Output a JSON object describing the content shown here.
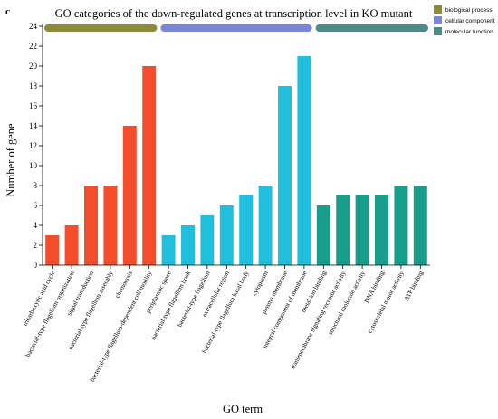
{
  "panel_letter": "c",
  "chart_data": {
    "type": "bar",
    "title": "GO categories of the down-regulated genes at transcription level in KO mutant",
    "xlabel": "GO term",
    "ylabel": "Number of gene",
    "ylim": [
      0,
      24
    ],
    "yticks": [
      0,
      2,
      4,
      6,
      8,
      10,
      12,
      14,
      16,
      18,
      20,
      22,
      24
    ],
    "grid": false,
    "legend_position": "top-right",
    "legend": [
      {
        "name": "biological process",
        "color": "#8b8b3a"
      },
      {
        "name": "cellular component",
        "color": "#7b86d8"
      },
      {
        "name": "molecular function",
        "color": "#4f8b86"
      }
    ],
    "series": [
      {
        "name": "biological process",
        "color": "#f44d2c",
        "categories": [
          "tricarboxylic acid cycle",
          "bacterial-type flagellum organization",
          "signal transduction",
          "bacterial-type flagellum assembly",
          "chemotaxis",
          "bacterial-type flagellum-dependent cell motility"
        ],
        "values": [
          3,
          4,
          8,
          8,
          14,
          20
        ]
      },
      {
        "name": "cellular component",
        "color": "#1fbfdd",
        "categories": [
          "periplasmic space",
          "bacterial-type flagellum hook",
          "bacterial-type flagellum",
          "extracellular region",
          "bacterial-type flagellum basal body",
          "cytoplasm",
          "plasma membrane",
          "integral component of membrane"
        ],
        "values": [
          3,
          4,
          5,
          6,
          7,
          8,
          18,
          21
        ]
      },
      {
        "name": "molecular function",
        "color": "#1a9e8c",
        "categories": [
          "metal ion binding",
          "transmembrane signaling receptor activity",
          "structural molecule activity",
          "DNA binding",
          "cytoskeletal motor activity",
          "ATP binding"
        ],
        "values": [
          6,
          7,
          7,
          7,
          8,
          8
        ]
      }
    ]
  }
}
